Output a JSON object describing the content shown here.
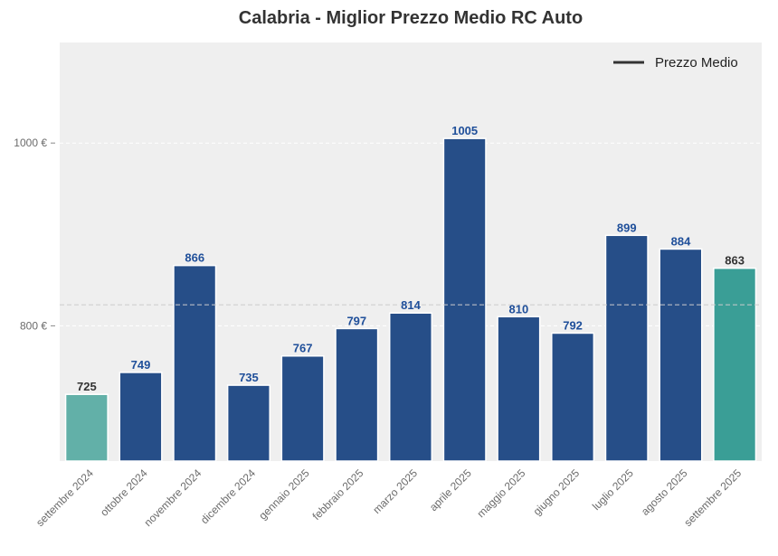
{
  "chart_data": {
    "type": "bar",
    "title": "Calabria - Miglior Prezzo Medio RC Auto",
    "xlabel": "",
    "ylabel": "",
    "categories": [
      "settembre 2024",
      "ottobre 2024",
      "novembre 2024",
      "dicembre 2024",
      "gennaio 2025",
      "febbraio 2025",
      "marzo 2025",
      "aprile 2025",
      "maggio 2025",
      "giugno 2025",
      "luglio 2025",
      "agosto 2025",
      "settembre 2025"
    ],
    "values": [
      725,
      749,
      866,
      735,
      767,
      797,
      814,
      1005,
      810,
      792,
      899,
      884,
      863
    ],
    "value_labels": [
      "725",
      "749",
      "866",
      "735",
      "767",
      "797",
      "814",
      "1005",
      "810",
      "792",
      "899",
      "884",
      "863"
    ],
    "bar_colors": [
      "#62b0a8",
      "#264e88",
      "#264e88",
      "#264e88",
      "#264e88",
      "#264e88",
      "#264e88",
      "#264e88",
      "#264e88",
      "#264e88",
      "#264e88",
      "#264e88",
      "#3a9e96"
    ],
    "label_colors": [
      "#333333",
      "#1f4f9a",
      "#1f4f9a",
      "#1f4f9a",
      "#1f4f9a",
      "#1f4f9a",
      "#1f4f9a",
      "#1f4f9a",
      "#1f4f9a",
      "#1f4f9a",
      "#1f4f9a",
      "#1f4f9a",
      "#333333"
    ],
    "ylim": [
      652,
      1110
    ],
    "yticks": [
      800,
      1000
    ],
    "ytick_labels": [
      "800 €",
      "1000 €"
    ],
    "average_line": {
      "name": "Prezzo Medio",
      "value": 823
    },
    "legend": {
      "position": "top-right",
      "entries": [
        "Prezzo Medio"
      ]
    },
    "grid": true,
    "colors": {
      "background": "#efefef",
      "grid": "#ffffff",
      "average_line": "#cccccc",
      "legend_line": "#333333",
      "tick_text": "#6b6b6b",
      "title": "#333333"
    }
  }
}
